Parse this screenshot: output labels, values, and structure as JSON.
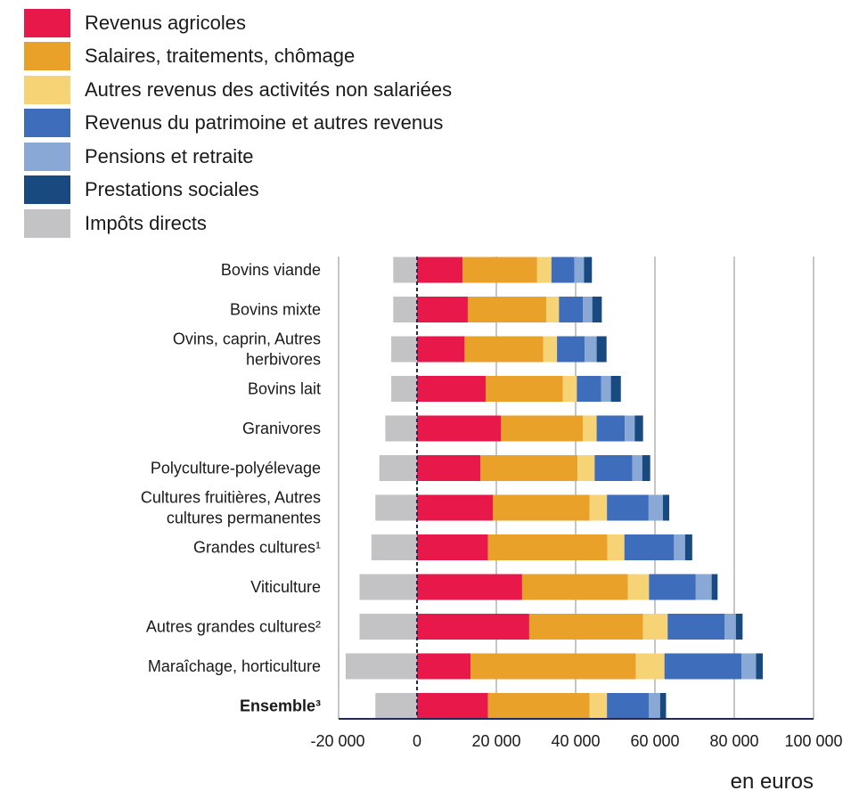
{
  "chart_data": {
    "type": "bar",
    "stacked": true,
    "orientation": "horizontal",
    "unit_label": "en euros",
    "xlim": [
      -20000,
      100000
    ],
    "xticks": [
      {
        "value": -20000,
        "label": "-20 000"
      },
      {
        "value": 0,
        "label": "0"
      },
      {
        "value": 20000,
        "label": "20 000"
      },
      {
        "value": 40000,
        "label": "40 000"
      },
      {
        "value": 60000,
        "label": "60 000"
      },
      {
        "value": 80000,
        "label": "80 000"
      },
      {
        "value": 100000,
        "label": "100 000"
      }
    ],
    "grid": "vertical",
    "legend_position": "top-left",
    "categories": [
      {
        "lines": [
          "Bovins viande"
        ],
        "bold": false
      },
      {
        "lines": [
          "Bovins mixte"
        ],
        "bold": false
      },
      {
        "lines": [
          "Ovins, caprin, Autres",
          "herbivores"
        ],
        "bold": false
      },
      {
        "lines": [
          "Bovins lait"
        ],
        "bold": false
      },
      {
        "lines": [
          "Granivores"
        ],
        "bold": false
      },
      {
        "lines": [
          "Polyculture-polyélevage"
        ],
        "bold": false
      },
      {
        "lines": [
          "Cultures fruitières, Autres",
          "cultures permanentes"
        ],
        "bold": false
      },
      {
        "lines": [
          "Grandes cultures¹"
        ],
        "bold": false
      },
      {
        "lines": [
          "Viticulture"
        ],
        "bold": false
      },
      {
        "lines": [
          "Autres grandes cultures²"
        ],
        "bold": false
      },
      {
        "lines": [
          "Maraîchage, horticulture"
        ],
        "bold": false
      },
      {
        "lines": [
          "Ensemble³"
        ],
        "bold": true
      }
    ],
    "series": [
      {
        "name": "Revenus agricoles",
        "color": "#E8194A",
        "values": [
          11500,
          12800,
          12000,
          17300,
          21200,
          16000,
          19100,
          17900,
          26500,
          28300,
          13500,
          17900
        ]
      },
      {
        "name": "Salaires, traitements, chômage",
        "color": "#E9A12A",
        "values": [
          18800,
          19800,
          19800,
          19500,
          20600,
          24500,
          24400,
          30100,
          26700,
          28700,
          41700,
          25600
        ]
      },
      {
        "name": "Autres revenus des activités non salariées",
        "color": "#F6D374",
        "values": [
          3600,
          3200,
          3500,
          3500,
          3500,
          4300,
          4400,
          4300,
          5300,
          6200,
          7200,
          4400
        ]
      },
      {
        "name": "Revenus du patrimoine et autres revenus",
        "color": "#3E6EBB",
        "values": [
          5800,
          6000,
          7000,
          6100,
          7100,
          9500,
          10500,
          12500,
          11800,
          14400,
          19400,
          10600
        ]
      },
      {
        "name": "Pensions et retraite",
        "color": "#8AA8D6",
        "values": [
          2400,
          2400,
          3000,
          2500,
          2500,
          2500,
          3600,
          2800,
          4000,
          2800,
          3700,
          2800
        ]
      },
      {
        "name": "Prestations sociales",
        "color": "#184A80",
        "values": [
          2000,
          2400,
          2500,
          2500,
          2100,
          2000,
          1600,
          1800,
          1500,
          1700,
          1700,
          1500
        ]
      },
      {
        "name": "Impôts directs",
        "color": "#C3C3C5",
        "values": [
          -6000,
          -6000,
          -6500,
          -6500,
          -8000,
          -9500,
          -10500,
          -11500,
          -14500,
          -14500,
          -18000,
          -10500
        ]
      }
    ]
  }
}
